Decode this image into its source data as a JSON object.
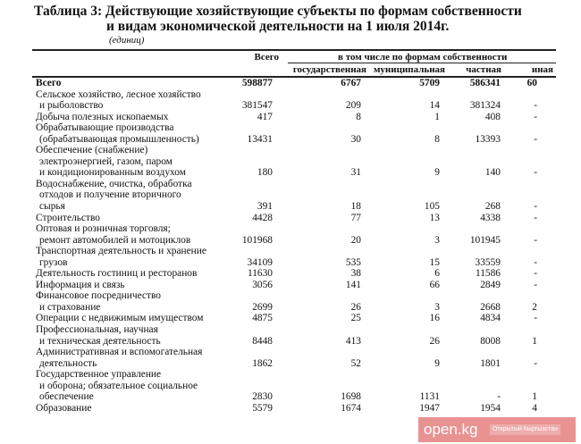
{
  "title_line1": "Таблица 3: Действующие хозяйствующие субъекты по формам собственности",
  "title_line2": "и видам экономической деятельности на 1 июля 2014г.",
  "unit": "(единиц)",
  "headers": {
    "total": "Всего",
    "group": "в том числе по формам собственности",
    "state": "государственная",
    "municipal": "муниципальная",
    "private": "частная",
    "other": "иная"
  },
  "rows": [
    {
      "label": [
        "Всего"
      ],
      "values": [
        "598877",
        "6767",
        "5709",
        "586341",
        "60"
      ],
      "bold": true
    },
    {
      "label": [
        "Сельское хозяйство, лесное хозяйство",
        "и рыболовство"
      ],
      "values": [
        "381547",
        "209",
        "14",
        "381324",
        "-"
      ]
    },
    {
      "label": [
        "Добыча полезных ископаемых"
      ],
      "values": [
        "417",
        "8",
        "1",
        "408",
        "-"
      ]
    },
    {
      "label": [
        "Обрабатывающие производства",
        "(обрабатывающая промышленность)"
      ],
      "values": [
        "13431",
        "30",
        "8",
        "13393",
        "-"
      ]
    },
    {
      "label": [
        "Обеспечение (снабжение)",
        "электроэнергией, газом, паром",
        "и кондиционированным воздухом"
      ],
      "values": [
        "180",
        "31",
        "9",
        "140",
        "-"
      ]
    },
    {
      "label": [
        "Водоснабжение, очистка, обработка",
        "отходов и получение вторичного",
        "сырья"
      ],
      "values": [
        "391",
        "18",
        "105",
        "268",
        "-"
      ]
    },
    {
      "label": [
        "Строительство"
      ],
      "values": [
        "4428",
        "77",
        "13",
        "4338",
        "-"
      ]
    },
    {
      "label": [
        "Оптовая и розничная торговля;",
        "ремонт автомобилей и мотоциклов"
      ],
      "values": [
        "101968",
        "20",
        "3",
        "101945",
        "-"
      ]
    },
    {
      "label": [
        "Транспортная деятельность и хранение",
        "грузов"
      ],
      "values": [
        "34109",
        "535",
        "15",
        "33559",
        "-"
      ]
    },
    {
      "label": [
        "Деятельность гостиниц и ресторанов"
      ],
      "values": [
        "11630",
        "38",
        "6",
        "11586",
        "-"
      ]
    },
    {
      "label": [
        "Информация и связь"
      ],
      "values": [
        "3056",
        "141",
        "66",
        "2849",
        "-"
      ]
    },
    {
      "label": [
        "Финансовое посредничество",
        "и страхование"
      ],
      "values": [
        "2699",
        "26",
        "3",
        "2668",
        "2"
      ]
    },
    {
      "label": [
        "Операции с недвижимым имуществом"
      ],
      "values": [
        "4875",
        "25",
        "16",
        "4834",
        "-"
      ]
    },
    {
      "label": [
        "Профессиональная, научная",
        "и техническая деятельность"
      ],
      "values": [
        "8448",
        "413",
        "26",
        "8008",
        "1"
      ]
    },
    {
      "label": [
        "Административная и вспомогательная",
        "деятельность"
      ],
      "values": [
        "1862",
        "52",
        "9",
        "1801",
        "-"
      ]
    },
    {
      "label": [
        "Государственное управление",
        "и оборона; обязательное социальное",
        "обеспечение"
      ],
      "values": [
        "2830",
        "1698",
        "1131",
        "-",
        "1"
      ]
    },
    {
      "label": [
        "Образование"
      ],
      "values": [
        "5579",
        "1674",
        "1947",
        "1954",
        "4"
      ]
    }
  ],
  "watermark": {
    "logo": "open.kg",
    "subtitle": "Открытый Кыргызстан"
  }
}
